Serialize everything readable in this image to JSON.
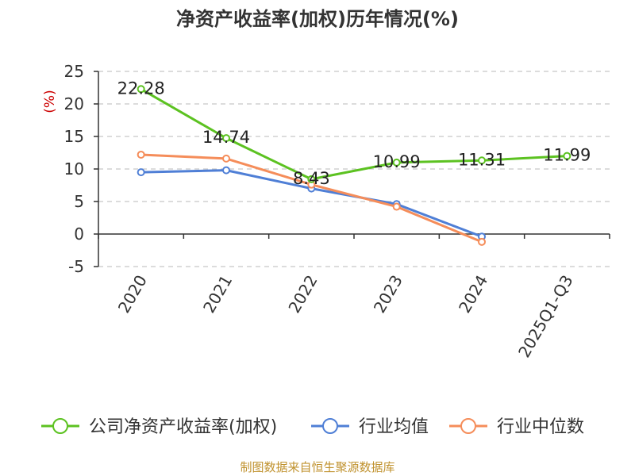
{
  "chart_data": {
    "type": "line",
    "title": "净资产收益率(加权)历年情况(%)",
    "ylabel": "(%)",
    "xlabel": "",
    "categories": [
      "2020",
      "2021",
      "2022",
      "2023",
      "2024",
      "2025Q1-Q3"
    ],
    "ylim": [
      -5,
      25
    ],
    "yticks": [
      -5,
      0,
      5,
      10,
      15,
      20,
      25
    ],
    "grid": true,
    "legend_position": "bottom",
    "series": [
      {
        "name": "公司净资产收益率(加权)",
        "color": "#5cc221",
        "values": [
          22.28,
          14.74,
          8.43,
          10.99,
          11.31,
          11.99
        ],
        "labels": [
          "22.28",
          "14.74",
          "8.43",
          "10.99",
          "11.31",
          "11.99"
        ]
      },
      {
        "name": "行业均值",
        "color": "#4f7fd6",
        "values": [
          9.5,
          9.8,
          7.0,
          4.6,
          -0.4,
          null
        ]
      },
      {
        "name": "行业中位数",
        "color": "#f58d5a",
        "values": [
          12.2,
          11.6,
          7.6,
          4.2,
          -1.2,
          null
        ]
      }
    ]
  },
  "source": "制图数据来自恒生聚源数据库"
}
